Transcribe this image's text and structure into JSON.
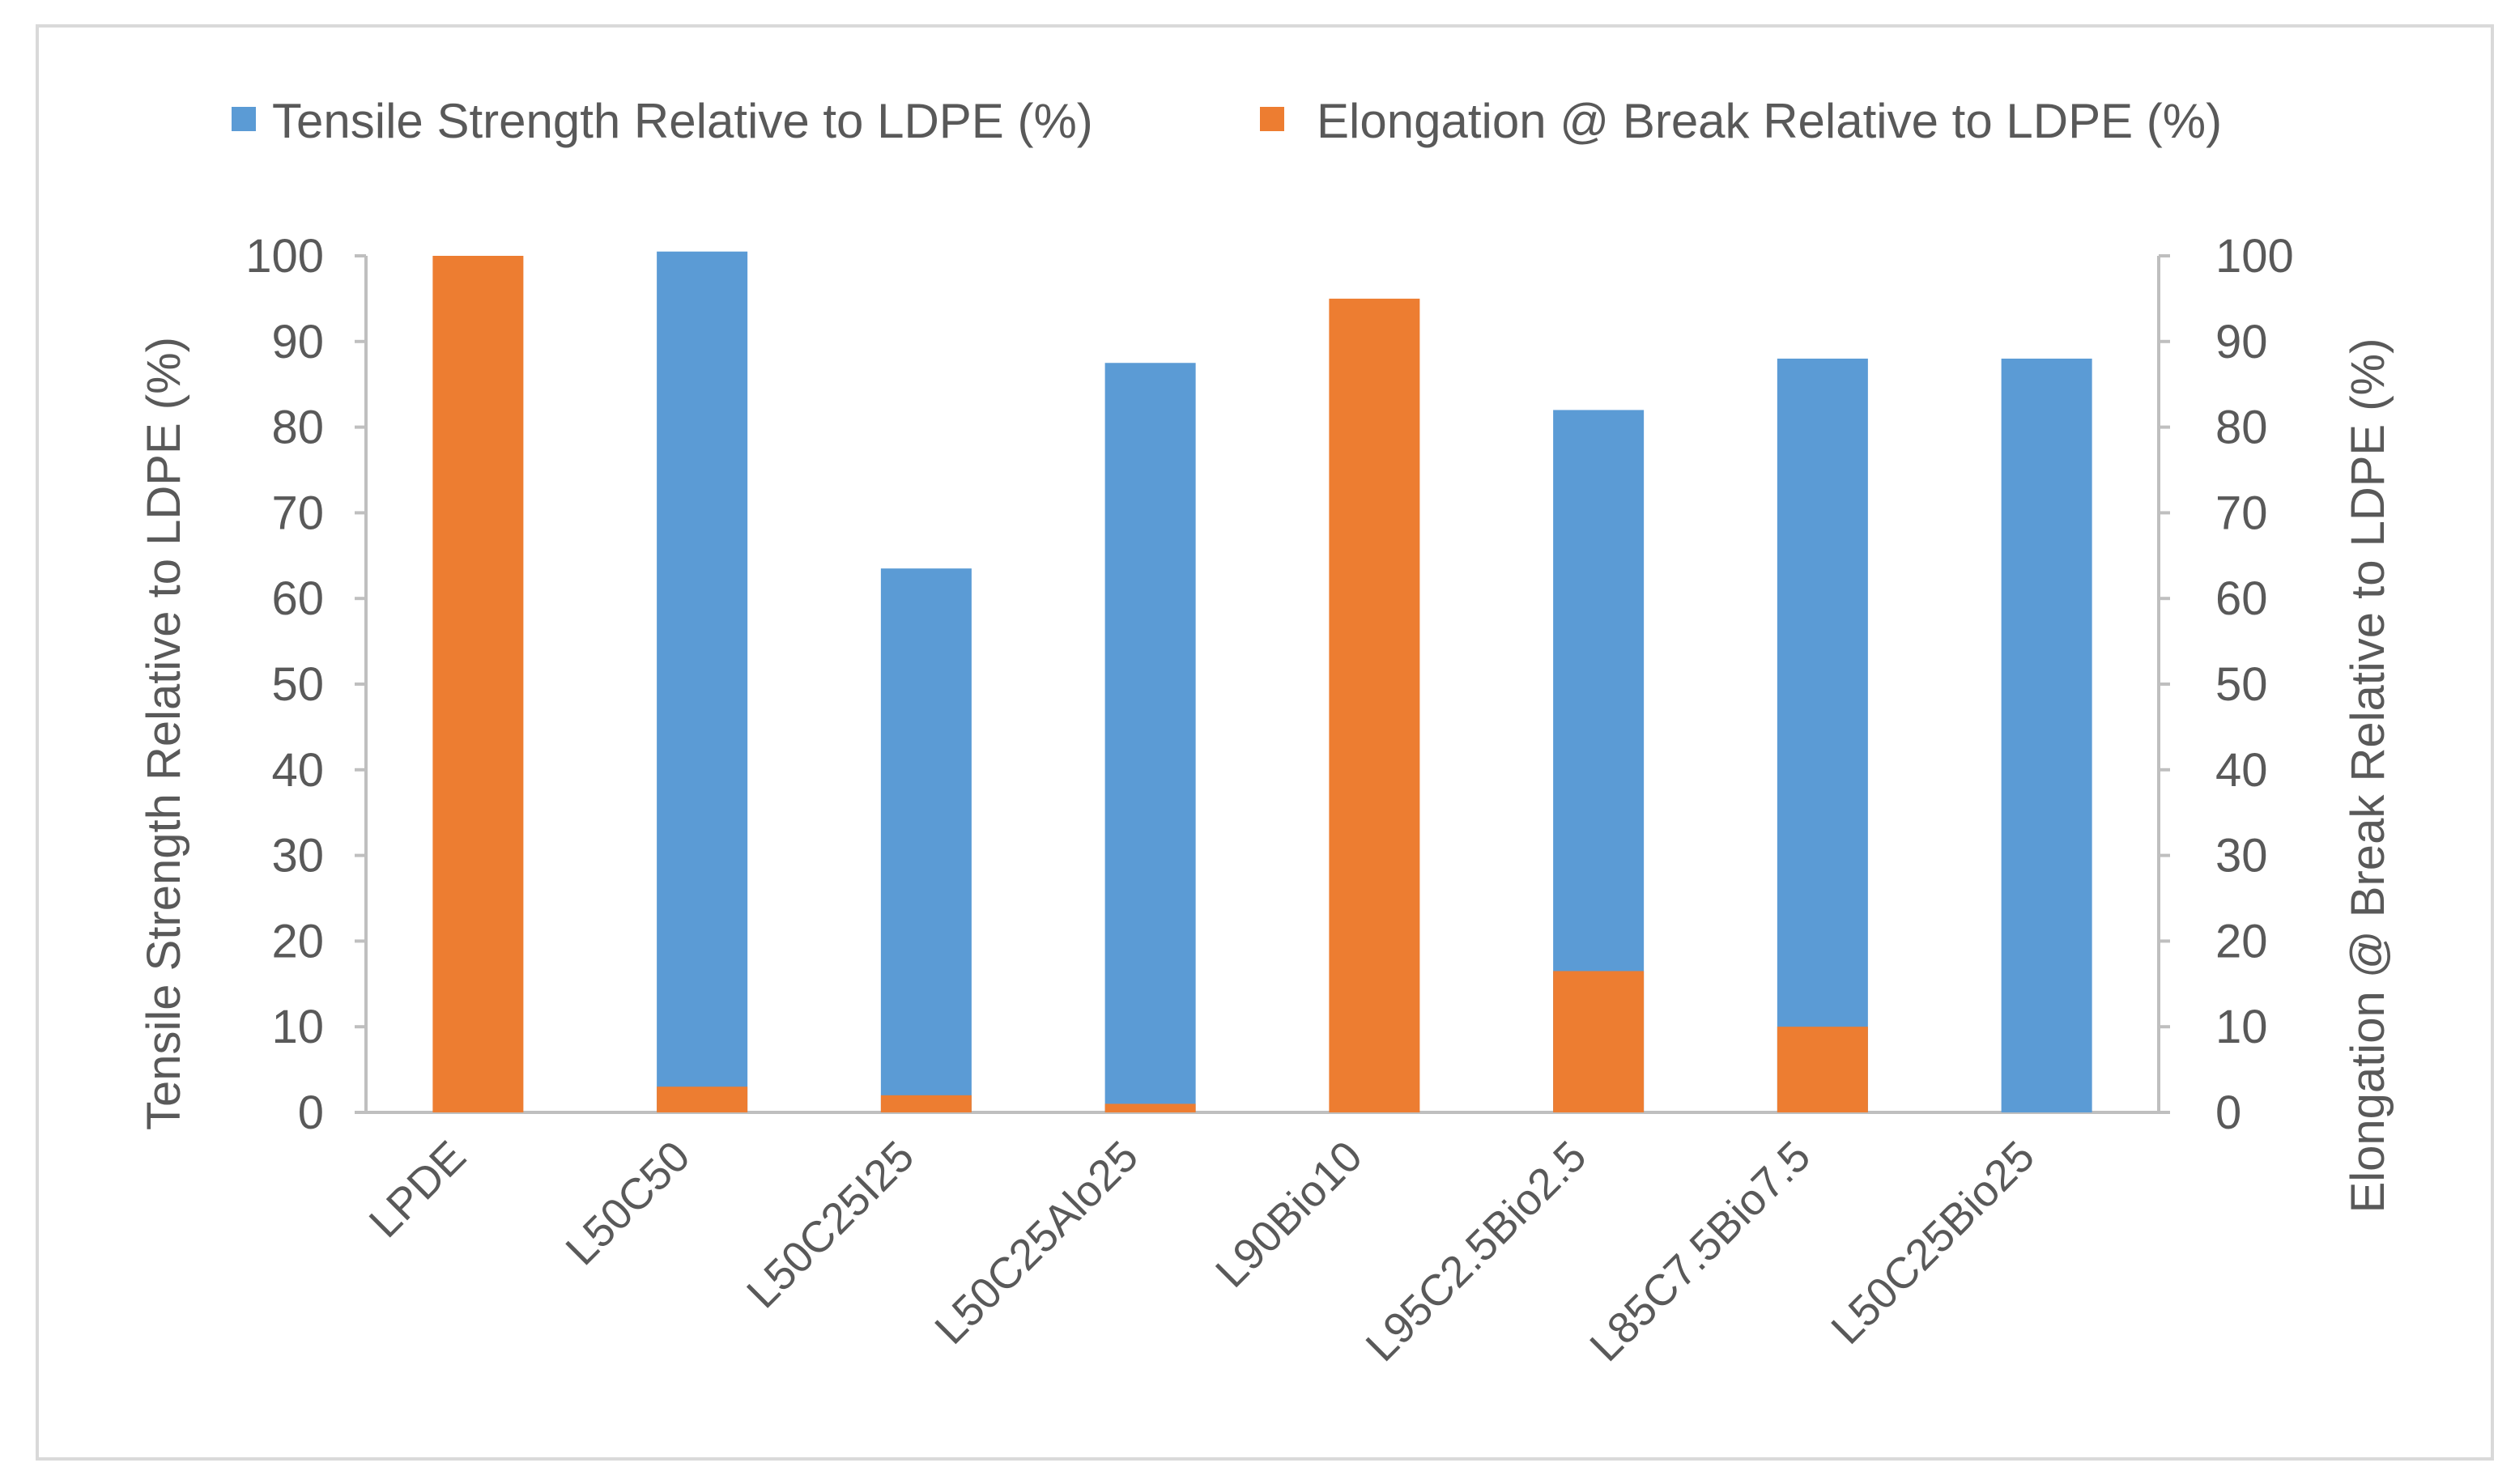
{
  "chart_data": {
    "type": "bar",
    "categories": [
      "LPDE",
      "L50C50",
      "L50C25I25",
      "L50C25Alo25",
      "L90Bio10",
      "L95C2.5Bio2.5",
      "L85C7.5Bio7.5",
      "L50C25Bio25"
    ],
    "series": [
      {
        "name": "Tensile Strength Relative to LDPE (%)",
        "axis": "left",
        "color": "#5b9bd5",
        "values": [
          0,
          100.5,
          63.5,
          87.5,
          0,
          82,
          88,
          88
        ]
      },
      {
        "name": "Elongation @ Break Relative to LDPE (%)",
        "axis": "right",
        "color": "#ed7d31",
        "values": [
          100,
          3,
          2,
          1,
          95,
          16.5,
          10,
          0
        ]
      }
    ],
    "ylabel": "Tensile Strength Relative to LDPE (%)",
    "y2label": "Elongation @ Break Relative to LDPE (%)",
    "ylim": [
      0,
      100
    ],
    "y2lim": [
      0,
      100
    ],
    "yticks": [
      "0",
      "10",
      "20",
      "30",
      "40",
      "50",
      "60",
      "70",
      "80",
      "90",
      "100"
    ],
    "y2ticks": [
      "0",
      "10",
      "20",
      "30",
      "40",
      "50",
      "60",
      "70",
      "80",
      "90",
      "100"
    ],
    "legend_position": "top",
    "grid": false
  }
}
